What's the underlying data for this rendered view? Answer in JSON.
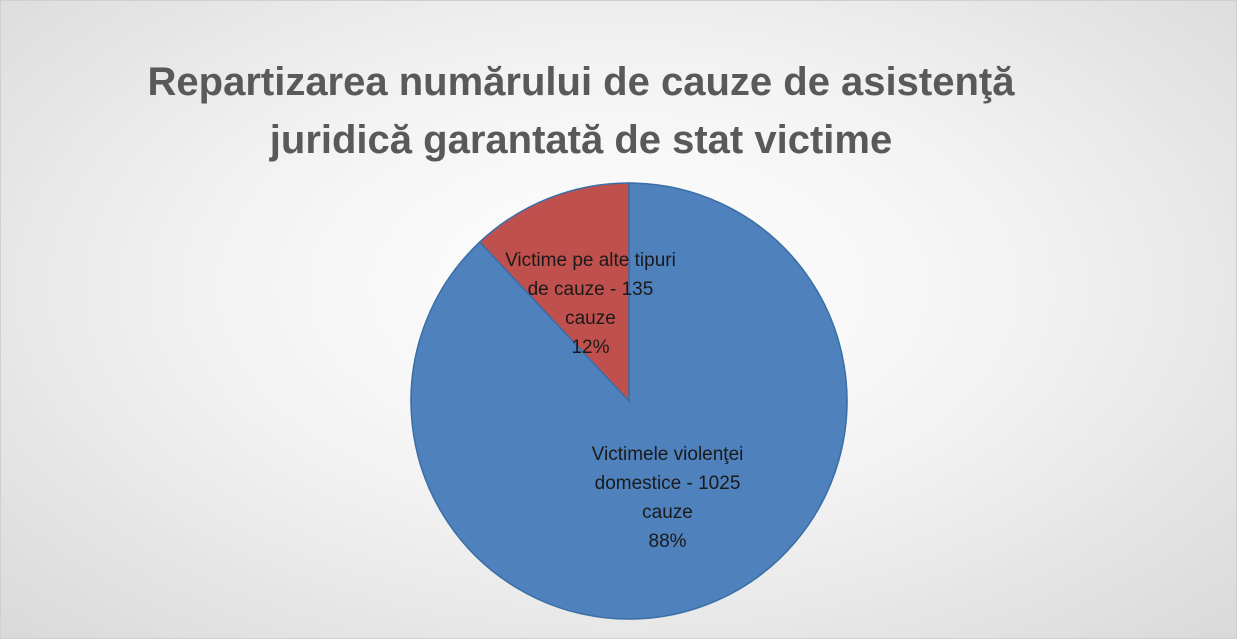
{
  "chart_data": {
    "type": "pie",
    "title": "Repartizarea numărului de cauze de asistenţă juridică garantată de stat victime",
    "categories": [
      "Victimele violenţei domestice - 1025 cauze",
      "Victime pe alte tipuri de cauze - 135 cauze"
    ],
    "values": [
      88,
      12
    ],
    "value_labels": [
      "88%",
      "12%"
    ],
    "colors": [
      "#4f81bd",
      "#c0504d"
    ]
  }
}
